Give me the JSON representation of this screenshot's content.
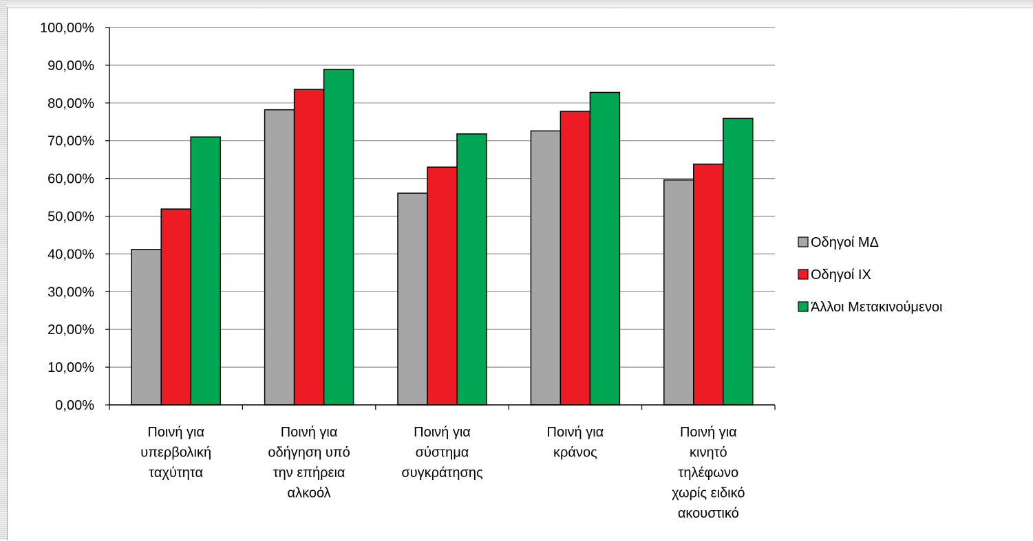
{
  "chart_data": {
    "type": "bar",
    "title": "",
    "xlabel": "",
    "ylabel": "",
    "ylim": [
      0,
      100
    ],
    "y_ticks": [
      "0,00%",
      "10,00%",
      "20,00%",
      "30,00%",
      "40,00%",
      "50,00%",
      "60,00%",
      "70,00%",
      "80,00%",
      "90,00%",
      "100,00%"
    ],
    "grid": "horizontal",
    "legend_position": "right",
    "categories": [
      [
        "Ποινή για",
        "υπερβολική",
        "ταχύτητα"
      ],
      [
        "Ποινή για",
        "οδήγηση υπό",
        "την επήρεια",
        "αλκοόλ"
      ],
      [
        "Ποινή για",
        "σύστημα",
        "συγκράτησης"
      ],
      [
        "Ποινή για",
        "κράνος"
      ],
      [
        "Ποινή για",
        "κινητό",
        "τηλέφωνο",
        "χωρίς ειδικό",
        "ακουστικό"
      ]
    ],
    "series": [
      {
        "name": "Οδηγοί ΜΔ",
        "color": "#a6a6a6",
        "values": [
          41.2,
          78.2,
          56.1,
          72.6,
          59.6
        ]
      },
      {
        "name": "Οδηγοί ΙΧ",
        "color": "#ed1c24",
        "values": [
          51.9,
          83.6,
          63.0,
          77.8,
          63.8
        ]
      },
      {
        "name": "Άλλοι Μετακινούμενοι",
        "color": "#00a651",
        "values": [
          71.0,
          88.9,
          71.8,
          82.8,
          75.9
        ]
      }
    ]
  }
}
